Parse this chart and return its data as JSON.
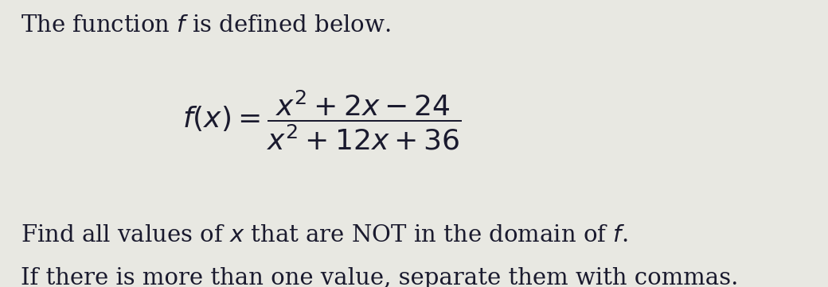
{
  "background_color": "#e8e8e2",
  "text_color": "#1a1a2e",
  "title_text": "The function $\\mathit{f}$ is defined below.",
  "formula_full": "$f(x)=\\dfrac{x^2+2x-24}{x^2+12x+36}$",
  "line_text": "Find all values of $x$ that are NOT in the domain of $f$.",
  "line_text2": "If there is more than one value, separate them with commas.",
  "title_fontsize": 21,
  "formula_fontsize": 26,
  "body_fontsize": 21,
  "fig_width": 10.4,
  "fig_height": 3.61,
  "dpi": 100
}
